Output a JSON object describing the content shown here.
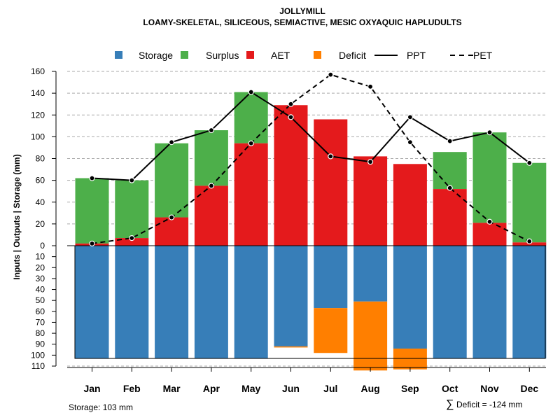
{
  "chart_data": {
    "type": "bar",
    "title": "JOLLYMILL",
    "subtitle": "LOAMY-SKELETAL, SILICEOUS, SEMIACTIVE, MESIC OXYAQUIC HAPLUDULTS",
    "ylabel": "Inputs | Outputs | Storage    (mm)",
    "categories": [
      "Jan",
      "Feb",
      "Mar",
      "Apr",
      "May",
      "Jun",
      "Jul",
      "Aug",
      "Sep",
      "Oct",
      "Nov",
      "Dec"
    ],
    "upper_ylim": [
      0,
      160
    ],
    "upper_ticks": [
      "160",
      "140",
      "120",
      "100",
      "80",
      "60",
      "40",
      "20",
      "0"
    ],
    "lower_ylim": [
      0,
      110
    ],
    "lower_ticks": [
      "10",
      "20",
      "30",
      "40",
      "50",
      "60",
      "70",
      "80",
      "90",
      "100",
      "110"
    ],
    "series": [
      {
        "name": "AET",
        "color": "#e41a1c",
        "values": [
          2,
          7,
          26,
          55,
          94,
          129,
          116,
          82,
          75,
          52,
          21,
          3
        ]
      },
      {
        "name": "Surplus",
        "color": "#4daf4a",
        "values": [
          60,
          53,
          68,
          51,
          47,
          0,
          0,
          0,
          0,
          34,
          83,
          73
        ]
      },
      {
        "name": "Storage",
        "color": "#377eb8",
        "values": [
          103,
          103,
          103,
          103,
          103,
          92,
          57,
          51,
          94,
          103,
          103,
          103
        ]
      },
      {
        "name": "Deficit",
        "color": "#ff7f00",
        "values": [
          0,
          0,
          0,
          0,
          0,
          1,
          41,
          63,
          19,
          0,
          0,
          0
        ]
      }
    ],
    "lines": [
      {
        "name": "PPT",
        "style": "solid",
        "values": [
          62,
          60,
          95,
          106,
          141,
          118,
          82,
          77,
          118,
          96,
          104,
          76
        ]
      },
      {
        "name": "PET",
        "style": "dashed",
        "values": [
          2,
          7,
          26,
          55,
          94,
          130,
          157,
          146,
          95,
          53,
          22,
          4
        ]
      }
    ],
    "storage_capacity": 103,
    "legend": [
      {
        "label": "Storage",
        "kind": "box",
        "color": "#377eb8"
      },
      {
        "label": "Surplus",
        "kind": "box",
        "color": "#4daf4a"
      },
      {
        "label": "AET",
        "kind": "box",
        "color": "#e41a1c"
      },
      {
        "label": "Deficit",
        "kind": "box",
        "color": "#ff7f00"
      },
      {
        "label": "PPT",
        "kind": "solid"
      },
      {
        "label": "PET",
        "kind": "dashed"
      }
    ]
  },
  "footer": {
    "storage_note": "Storage: 103 mm",
    "deficit_note": "Deficit = -124 mm",
    "sum_symbol": "∑"
  }
}
